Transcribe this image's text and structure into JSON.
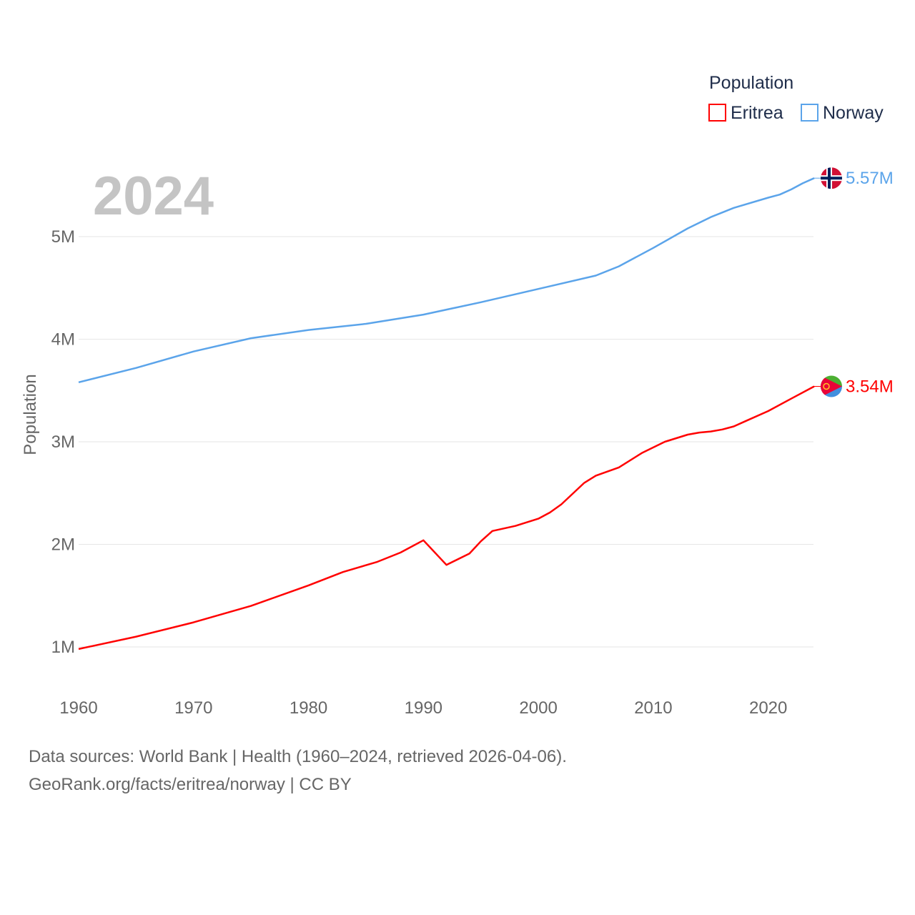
{
  "chart_data": {
    "type": "line",
    "title": "Population",
    "year_label": "2024",
    "xlabel": "",
    "ylabel": "Population",
    "xlim": [
      1960,
      2024
    ],
    "ylim": [
      0.75,
      5.9
    ],
    "x_ticks": [
      "1960",
      "1970",
      "1980",
      "1990",
      "2000",
      "2010",
      "2020"
    ],
    "y_ticks": [
      {
        "v": 1,
        "label": "1M"
      },
      {
        "v": 2,
        "label": "2M"
      },
      {
        "v": 3,
        "label": "3M"
      },
      {
        "v": 4,
        "label": "4M"
      },
      {
        "v": 5,
        "label": "5M"
      }
    ],
    "grid": true,
    "legend": {
      "title": "Population",
      "placement": "top-right"
    },
    "series": [
      {
        "name": "Eritrea",
        "color": "#ff0000",
        "end_label": "3.54M",
        "flag": "eritrea-flag",
        "x": [
          1960,
          1965,
          1970,
          1975,
          1980,
          1983,
          1986,
          1988,
          1990,
          1992,
          1994,
          1995,
          1996,
          1998,
          2000,
          2001,
          2002,
          2004,
          2005,
          2007,
          2009,
          2011,
          2013,
          2014,
          2015,
          2016,
          2017,
          2018,
          2020,
          2022,
          2024
        ],
        "y": [
          0.98,
          1.1,
          1.24,
          1.4,
          1.6,
          1.73,
          1.83,
          1.92,
          2.04,
          1.8,
          1.91,
          2.03,
          2.13,
          2.18,
          2.25,
          2.31,
          2.39,
          2.6,
          2.67,
          2.75,
          2.89,
          3.0,
          3.07,
          3.09,
          3.1,
          3.12,
          3.15,
          3.2,
          3.3,
          3.42,
          3.54
        ]
      },
      {
        "name": "Norway",
        "color": "#5ba4ea",
        "end_label": "5.57M",
        "flag": "norway-flag",
        "x": [
          1960,
          1965,
          1970,
          1975,
          1980,
          1985,
          1990,
          1995,
          2000,
          2005,
          2007,
          2010,
          2013,
          2015,
          2017,
          2020,
          2021,
          2022,
          2023,
          2024
        ],
        "y": [
          3.58,
          3.72,
          3.88,
          4.01,
          4.09,
          4.15,
          4.24,
          4.36,
          4.49,
          4.62,
          4.71,
          4.89,
          5.08,
          5.19,
          5.28,
          5.38,
          5.41,
          5.46,
          5.52,
          5.57
        ]
      }
    ]
  },
  "footer": {
    "line1": "Data sources: World Bank | Health (1960–2024, retrieved 2026-04-06).",
    "line2": "GeoRank.org/facts/eritrea/norway | CC BY"
  }
}
